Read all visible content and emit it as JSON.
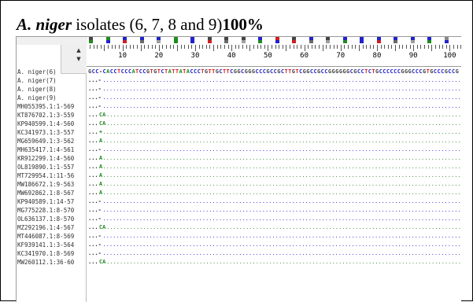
{
  "caption": {
    "species": "A. niger",
    "text": " isolates (6, 7, 8 and 9)",
    "percent": "100%"
  },
  "ruler": {
    "labels": [
      "10",
      "20",
      "30",
      "40",
      "50",
      "60",
      "70",
      "80",
      "90",
      "100"
    ]
  },
  "alignment": {
    "reference_sequence": "GCC-CACCTCCCATCCGTGTCTATTATACCCTGTTGCTTCGGCGGGCCCGCCGCTTGTCGGCCGCCGGGGGGCGCCTCTGCCCCCCGGGCCCGTGCCCGCCG",
    "rows": [
      {
        "name": "A. niger(6)",
        "gap": "",
        "mark": ""
      },
      {
        "name": "A. niger(7)",
        "gap": "...-",
        "mark": ""
      },
      {
        "name": "A. niger(8)",
        "gap": "...-",
        "mark": ""
      },
      {
        "name": "A. niger(9)",
        "gap": "...-",
        "mark": ""
      },
      {
        "name": "MH055395.1:1-569",
        "gap": "...-",
        "mark": ""
      },
      {
        "name": "KT876702.1:3-559",
        "gap": "...",
        "mark": "CA"
      },
      {
        "name": "KP940599.1:4-560",
        "gap": "...",
        "mark": "CA"
      },
      {
        "name": "KC341973.1:3-557",
        "gap": "...",
        "mark": "+"
      },
      {
        "name": "MG659649.1:3-562",
        "gap": "...",
        "mark": "A"
      },
      {
        "name": "MH635417.1:4-561",
        "gap": "...-",
        "mark": ""
      },
      {
        "name": "KR912299.1:4-560",
        "gap": "...",
        "mark": "A"
      },
      {
        "name": "OL819890.1:1-557",
        "gap": "...",
        "mark": "A"
      },
      {
        "name": "MT729954.1:11-56",
        "gap": "...",
        "mark": "A"
      },
      {
        "name": "MW186672.1:9-563",
        "gap": "...",
        "mark": "A"
      },
      {
        "name": "MW692862.1:8-567",
        "gap": "...",
        "mark": "A"
      },
      {
        "name": "KP940589.1:14-57",
        "gap": "...-",
        "mark": ""
      },
      {
        "name": "MG775228.1:8-570",
        "gap": "...-",
        "mark": ""
      },
      {
        "name": "OL636137.1:8-570",
        "gap": "...-",
        "mark": ""
      },
      {
        "name": "MZ292196.1:4-567",
        "gap": "...",
        "mark": "CA"
      },
      {
        "name": "MT446087.1:8-569",
        "gap": "...-",
        "mark": ""
      },
      {
        "name": "KF939141.1:3-564",
        "gap": "...-",
        "mark": ""
      },
      {
        "name": "KC341970.1:8-569",
        "gap": "...-",
        "mark": ""
      },
      {
        "name": "MW260112.1:36-60",
        "gap": "...",
        "mark": "CA"
      }
    ]
  },
  "colors": {
    "A": "#1e8c1e",
    "C": "#2222cc",
    "G": "#444444",
    "T": "#d02020",
    "dots": "#2a2ad0",
    "name_pane_bg": "#ffffff"
  }
}
